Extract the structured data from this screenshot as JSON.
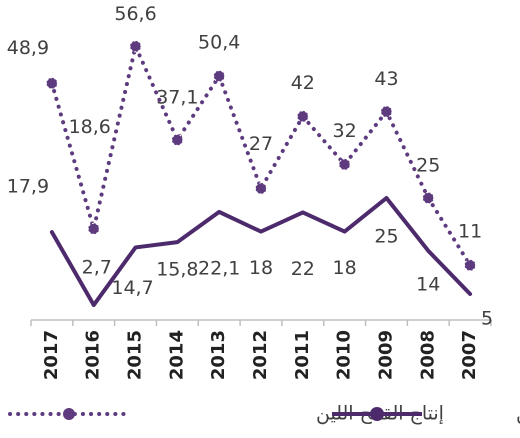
{
  "chart_data": {
    "type": "line",
    "categories": [
      "2017",
      "2016",
      "2015",
      "2014",
      "2013",
      "2012",
      "2011",
      "2010",
      "2009",
      "2008",
      "2007"
    ],
    "series": [
      {
        "name": "إنتاج القمح اللين",
        "color": "#5e3b7e",
        "style": "dotted",
        "values": [
          48.9,
          18.6,
          56.6,
          37.1,
          50.4,
          27,
          42,
          32,
          43,
          25,
          11
        ],
        "value_labels": [
          "48,9",
          "18,6",
          "56,6",
          "37,1",
          "50,4",
          "27",
          "42",
          "32",
          "43",
          "25",
          "11"
        ]
      },
      {
        "name": "تجميع القمح اللين",
        "color": "#4d2a6b",
        "style": "solid",
        "values": [
          17.9,
          2.7,
          14.7,
          15.8,
          22.1,
          18,
          22,
          18,
          25,
          14,
          5
        ],
        "value_labels": [
          "17,9",
          "2,7",
          "14,7",
          "15,8",
          "22,1",
          "18",
          "22",
          "18",
          "25",
          "14",
          "5"
        ]
      }
    ],
    "ylim": [
      0,
      60
    ]
  }
}
